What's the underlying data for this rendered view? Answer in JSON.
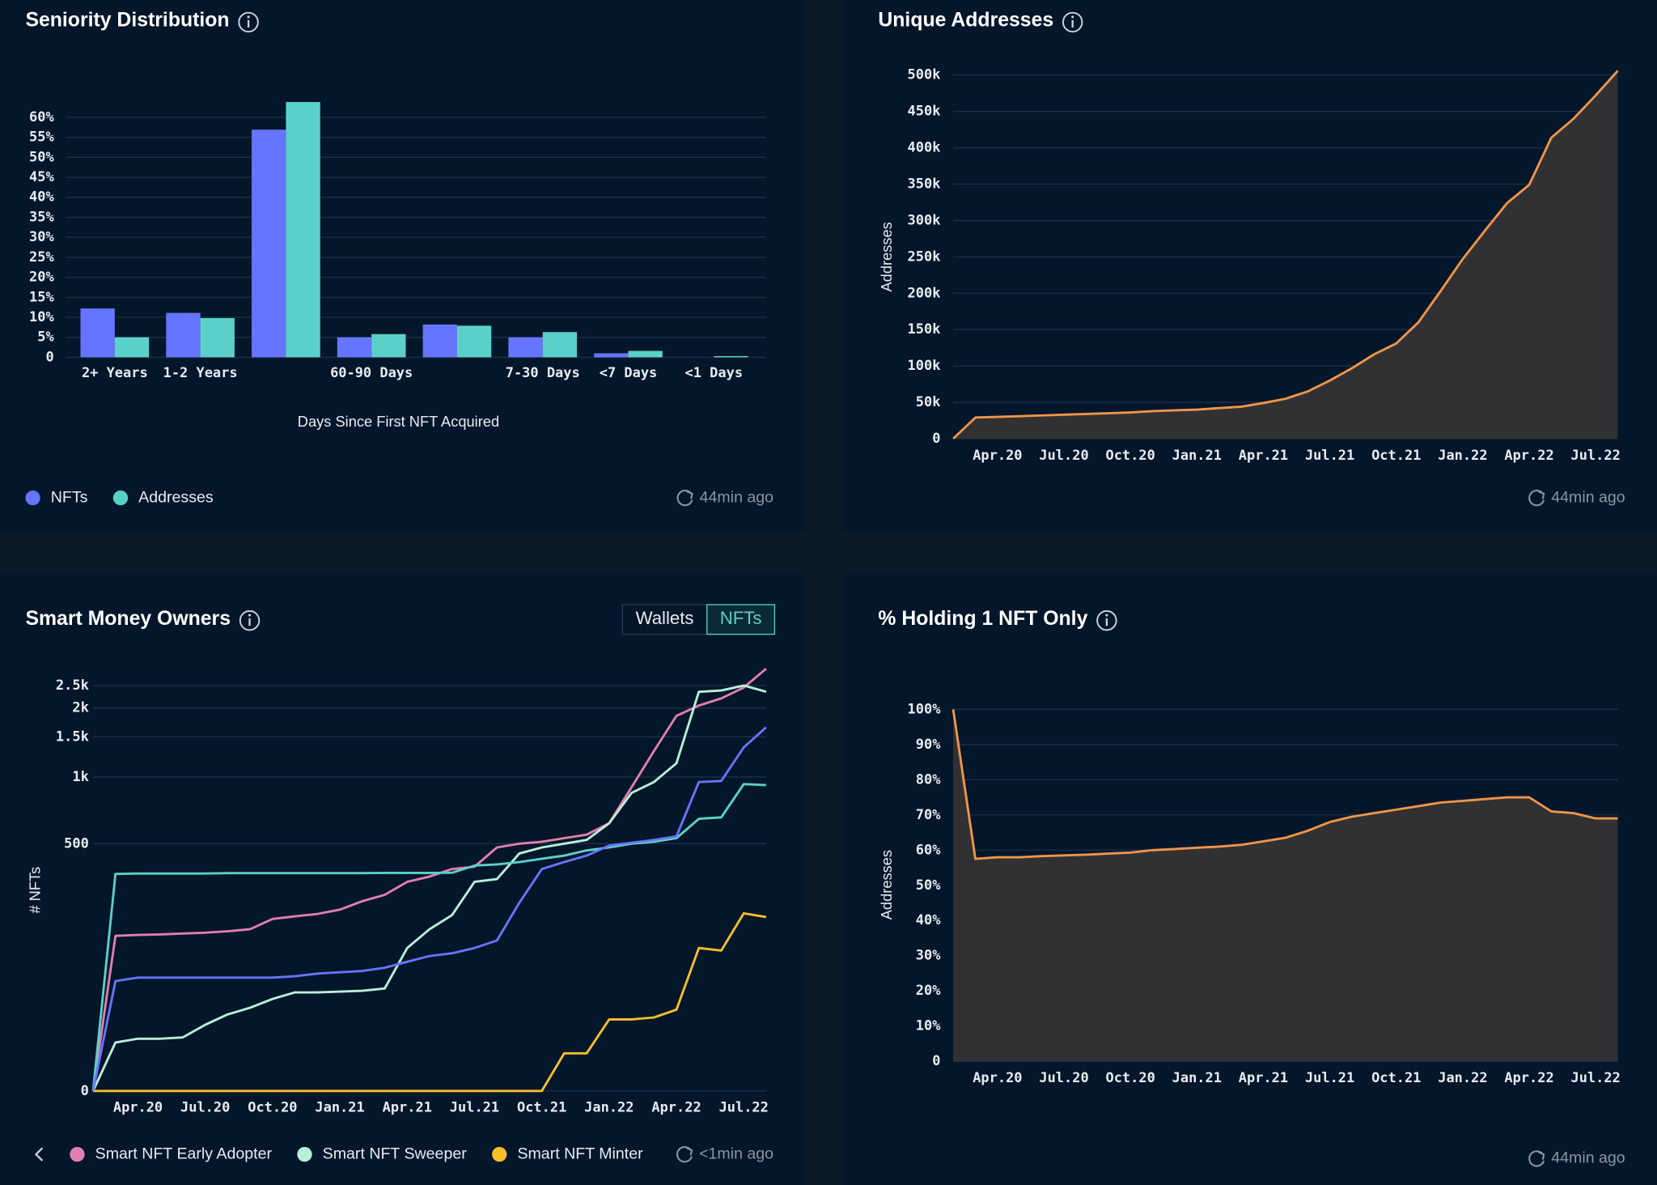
{
  "chart_data": [
    {
      "type": "bar",
      "title": "Seniority Distribution",
      "xlabel": "Days Since First NFT Acquired",
      "categories": [
        "2+ Years",
        "1-2 Years",
        null,
        "60-90 Days",
        null,
        "7-30 Days",
        "<7 Days",
        "<1 Days"
      ],
      "series": [
        {
          "name": "NFTs",
          "color": "#6675ff",
          "values": [
            12.2,
            11.1,
            56.9,
            5,
            8.2,
            5,
            1,
            0
          ]
        },
        {
          "name": "Addresses",
          "color": "#5ad1c8",
          "values": [
            5,
            9.8,
            63.8,
            5.8,
            7.9,
            6.3,
            1.6,
            0.3
          ]
        }
      ],
      "ylim": [
        0,
        65
      ],
      "yticks": [
        0,
        {
          "value": 5,
          "label": "5%"
        },
        {
          "value": 10,
          "label": "10%"
        },
        {
          "value": 15,
          "label": "15%"
        },
        {
          "value": 20,
          "label": "20%"
        },
        {
          "value": 25,
          "label": "25%"
        },
        {
          "value": 30,
          "label": "30%"
        },
        {
          "value": 35,
          "label": "35%"
        },
        {
          "value": 40,
          "label": "40%"
        },
        {
          "value": 45,
          "label": "45%"
        },
        {
          "value": 50,
          "label": "50%"
        },
        {
          "value": 55,
          "label": "55%"
        },
        {
          "value": 60,
          "label": "60%"
        }
      ],
      "grid": true,
      "legend": "bottom-left",
      "updated": "44min ago"
    },
    {
      "type": "area",
      "title": "Unique Addresses",
      "ylabel": "Addresses",
      "x": [
        "2020-02",
        "2020-03",
        "2020-04",
        "2020-05",
        "2020-06",
        "2020-07",
        "2020-08",
        "2020-09",
        "2020-10",
        "2020-11",
        "2020-12",
        "2021-01",
        "2021-02",
        "2021-03",
        "2021-04",
        "2021-05",
        "2021-06",
        "2021-07",
        "2021-08",
        "2021-09",
        "2021-10",
        "2021-11",
        "2021-12",
        "2022-01",
        "2022-02",
        "2022-03",
        "2022-04",
        "2022-05",
        "2022-06",
        "2022-07",
        "2022-08"
      ],
      "series": [
        {
          "color": "#f0954a",
          "fill_color": "#313133",
          "values": [
            0,
            29000,
            30000,
            31000,
            32000,
            33000,
            34000,
            35000,
            36000,
            38000,
            39000,
            40000,
            42000,
            44000,
            49000,
            55000,
            65000,
            80000,
            97000,
            116000,
            131000,
            160000,
            203000,
            247000,
            286000,
            324000,
            349000,
            414000,
            440000,
            472000,
            506000
          ]
        }
      ],
      "xlim": [
        "2020-02",
        "2022-08"
      ],
      "xticks": [
        {
          "value": "2020-04",
          "label": "Apr.20"
        },
        {
          "value": "2020-07",
          "label": "Jul.20"
        },
        {
          "value": "2020-10",
          "label": "Oct.20"
        },
        {
          "value": "2021-01",
          "label": "Jan.21"
        },
        {
          "value": "2021-04",
          "label": "Apr.21"
        },
        {
          "value": "2021-07",
          "label": "Jul.21"
        },
        {
          "value": "2021-10",
          "label": "Oct.21"
        },
        {
          "value": "2022-01",
          "label": "Jan.22"
        },
        {
          "value": "2022-04",
          "label": "Apr.22"
        },
        {
          "value": "2022-07",
          "label": "Jul.22"
        }
      ],
      "ylim": [
        0,
        500000
      ],
      "yticks": [
        0,
        {
          "value": 50000,
          "label": "50k"
        },
        {
          "value": 100000,
          "label": "100k"
        },
        {
          "value": 150000,
          "label": "150k"
        },
        {
          "value": 200000,
          "label": "200k"
        },
        {
          "value": 250000,
          "label": "250k"
        },
        {
          "value": 300000,
          "label": "300k"
        },
        {
          "value": 350000,
          "label": "350k"
        },
        {
          "value": 400000,
          "label": "400k"
        },
        {
          "value": 450000,
          "label": "450k"
        },
        {
          "value": 500000,
          "label": "500k"
        }
      ],
      "grid": true,
      "updated": "44min ago"
    },
    {
      "type": "line",
      "title": "Smart Money Owners",
      "ylabel": "# NFTs",
      "toggle": [
        "Wallets",
        "NFTs"
      ],
      "toggle_selected": 1,
      "x": [
        "2020-02",
        "2020-03",
        "2020-04",
        "2020-05",
        "2020-06",
        "2020-07",
        "2020-08",
        "2020-09",
        "2020-10",
        "2020-11",
        "2020-12",
        "2021-01",
        "2021-02",
        "2021-03",
        "2021-04",
        "2021-05",
        "2021-06",
        "2021-07",
        "2021-08",
        "2021-09",
        "2021-10",
        "2021-11",
        "2021-12",
        "2022-01",
        "2022-02",
        "2022-03",
        "2022-04",
        "2022-05",
        "2022-06",
        "2022-07",
        "2022-08"
      ],
      "series": [
        {
          "name": "Smart NFT Early Adopter",
          "color": "#e07fb0",
          "values": [
            0,
            175,
            177,
            178,
            180,
            182,
            185,
            190,
            215,
            222,
            228,
            240,
            265,
            285,
            330,
            350,
            380,
            390,
            480,
            500,
            510,
            530,
            550,
            620,
            900,
            1300,
            1850,
            2050,
            2200,
            2450,
            2950
          ]
        },
        {
          "name": "Smart NFT Sweeper",
          "color": "#b8f0d8",
          "values": [
            0,
            30,
            33,
            33,
            34,
            45,
            55,
            62,
            72,
            80,
            80,
            81,
            82,
            85,
            150,
            190,
            225,
            330,
            340,
            450,
            480,
            500,
            520,
            620,
            850,
            950,
            1150,
            2350,
            2380,
            2500,
            2350
          ]
        },
        {
          "name": "Smart NFT Minter",
          "color": "#f5c02a",
          "values": [
            0,
            0,
            0,
            0,
            0,
            0,
            0,
            0,
            0,
            0,
            0,
            0,
            0,
            0,
            0,
            0,
            0,
            0,
            0,
            0,
            0,
            22,
            22,
            50,
            50,
            52,
            60,
            150,
            145,
            230,
            220
          ]
        },
        {
          "color": "#5ad1c8",
          "values": [
            0,
            360,
            362,
            362,
            362,
            362,
            363,
            363,
            363,
            363,
            363,
            363,
            363,
            364,
            364,
            364,
            365,
            395,
            400,
            410,
            425,
            440,
            465,
            480,
            500,
            510,
            530,
            650,
            660,
            930,
            920
          ]
        },
        {
          "color": "#6675ff",
          "values": [
            0,
            95,
            100,
            100,
            100,
            100,
            100,
            100,
            100,
            102,
            106,
            108,
            110,
            115,
            125,
            135,
            140,
            150,
            165,
            260,
            380,
            410,
            440,
            490,
            505,
            520,
            540,
            950,
            960,
            1350,
            1650
          ]
        }
      ],
      "xlim": [
        "2020-02",
        "2022-08"
      ],
      "xticks": [
        {
          "value": "2020-04",
          "label": "Apr.20"
        },
        {
          "value": "2020-07",
          "label": "Jul.20"
        },
        {
          "value": "2020-10",
          "label": "Oct.20"
        },
        {
          "value": "2021-01",
          "label": "Jan.21"
        },
        {
          "value": "2021-04",
          "label": "Apr.21"
        },
        {
          "value": "2021-07",
          "label": "Jul.21"
        },
        {
          "value": "2021-10",
          "label": "Oct.21"
        },
        {
          "value": "2022-01",
          "label": "Jan.22"
        },
        {
          "value": "2022-04",
          "label": "Apr.22"
        },
        {
          "value": "2022-07",
          "label": "Jul.22"
        }
      ],
      "ylim": [
        0,
        3000
      ],
      "yscale": "symlog",
      "yticks": [
        0,
        500,
        {
          "value": 1000,
          "label": "1k"
        },
        {
          "value": 1500,
          "label": "1.5k"
        },
        {
          "value": 2000,
          "label": "2k"
        },
        {
          "value": 2500,
          "label": "2.5k"
        }
      ],
      "grid": true,
      "legend": "bottom-left",
      "updated": "<1min ago"
    },
    {
      "type": "area",
      "title": "% Holding 1 NFT Only",
      "ylabel": "Addresses",
      "x": [
        "2020-02",
        "2020-03",
        "2020-04",
        "2020-05",
        "2020-06",
        "2020-07",
        "2020-08",
        "2020-09",
        "2020-10",
        "2020-11",
        "2020-12",
        "2021-01",
        "2021-02",
        "2021-03",
        "2021-04",
        "2021-05",
        "2021-06",
        "2021-07",
        "2021-08",
        "2021-09",
        "2021-10",
        "2021-11",
        "2021-12",
        "2022-01",
        "2022-02",
        "2022-03",
        "2022-04",
        "2022-05",
        "2022-06",
        "2022-07",
        "2022-08"
      ],
      "series": [
        {
          "color": "#f0954a",
          "fill_color": "#313133",
          "values": [
            100,
            57.5,
            58,
            58,
            58.3,
            58.5,
            58.7,
            59,
            59.3,
            60,
            60.3,
            60.7,
            61,
            61.5,
            62.5,
            63.5,
            65.5,
            68,
            69.5,
            70.5,
            71.5,
            72.5,
            73.5,
            74,
            74.5,
            75,
            75,
            71,
            70.5,
            69,
            69
          ]
        }
      ],
      "xlim": [
        "2020-02",
        "2022-08"
      ],
      "xticks": [
        {
          "value": "2020-04",
          "label": "Apr.20"
        },
        {
          "value": "2020-07",
          "label": "Jul.20"
        },
        {
          "value": "2020-10",
          "label": "Oct.20"
        },
        {
          "value": "2021-01",
          "label": "Jan.21"
        },
        {
          "value": "2021-04",
          "label": "Apr.21"
        },
        {
          "value": "2021-07",
          "label": "Jul.21"
        },
        {
          "value": "2021-10",
          "label": "Oct.21"
        },
        {
          "value": "2022-01",
          "label": "Jan.22"
        },
        {
          "value": "2022-04",
          "label": "Apr.22"
        },
        {
          "value": "2022-07",
          "label": "Jul.22"
        }
      ],
      "ylim": [
        0,
        100
      ],
      "yticks": [
        0,
        {
          "value": 10,
          "label": "10%"
        },
        {
          "value": 20,
          "label": "20%"
        },
        {
          "value": 30,
          "label": "30%"
        },
        {
          "value": 40,
          "label": "40%"
        },
        {
          "value": 50,
          "label": "50%"
        },
        {
          "value": 60,
          "label": "60%"
        },
        {
          "value": 70,
          "label": "70%"
        },
        {
          "value": 80,
          "label": "80%"
        },
        {
          "value": 90,
          "label": "90%"
        },
        {
          "value": 100,
          "label": "100%"
        }
      ],
      "grid": true,
      "updated": "44min ago"
    }
  ]
}
